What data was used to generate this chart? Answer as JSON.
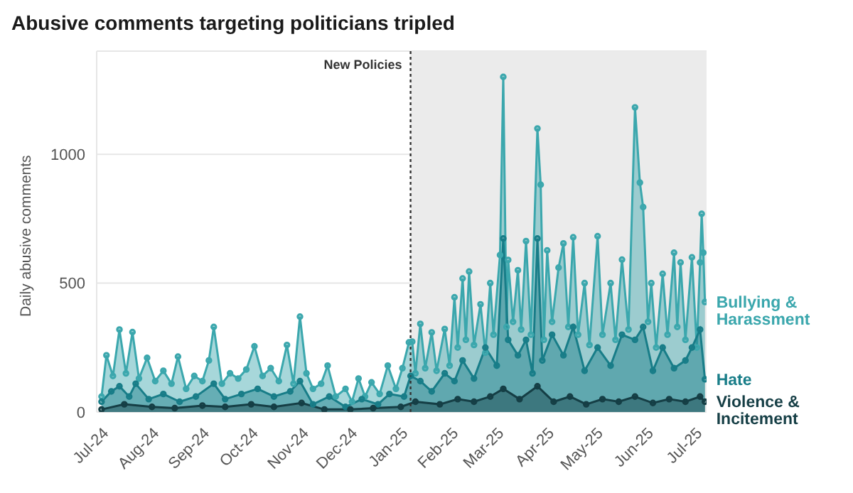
{
  "chart_data": {
    "type": "area",
    "title": "Abusive comments targeting politicians tripled",
    "ylabel": "Daily abusive comments",
    "xlim": [
      "2024-06-28",
      "2025-07-08"
    ],
    "xticks": [
      {
        "value": "2024-07-01",
        "label": "Jul-24"
      },
      {
        "value": "2024-08-01",
        "label": "Aug-24"
      },
      {
        "value": "2024-09-01",
        "label": "Sep-24"
      },
      {
        "value": "2024-10-01",
        "label": "Oct-24"
      },
      {
        "value": "2024-11-01",
        "label": "Nov-24"
      },
      {
        "value": "2024-12-01",
        "label": "Dec-24"
      },
      {
        "value": "2025-01-01",
        "label": "Jan-25"
      },
      {
        "value": "2025-02-01",
        "label": "Feb-25"
      },
      {
        "value": "2025-03-01",
        "label": "Mar-25"
      },
      {
        "value": "2025-04-01",
        "label": "Apr-25"
      },
      {
        "value": "2025-05-01",
        "label": "May-25"
      },
      {
        "value": "2025-06-01",
        "label": "Jun-25"
      },
      {
        "value": "2025-07-01",
        "label": "Jul-25"
      }
    ],
    "ylim": [
      0,
      1400
    ],
    "yticks": [
      0,
      500,
      1000
    ],
    "grid": "y",
    "marker": "circle",
    "ref_lines": [
      {
        "axis": "x",
        "value": "2025-01-07",
        "label": "New Policies",
        "color": "#333333",
        "line_style": "dotted"
      }
    ],
    "bands": [
      {
        "axis": "x",
        "from": "2025-01-07",
        "to": "2025-07-08",
        "color": "#ebebeb"
      }
    ],
    "series": [
      {
        "name": "Bullying & Harassment",
        "color": "#3ba7ad",
        "x": [
          "2024-07-01",
          "2024-07-04",
          "2024-07-08",
          "2024-07-12",
          "2024-07-16",
          "2024-07-20",
          "2024-07-24",
          "2024-07-29",
          "2024-08-03",
          "2024-08-08",
          "2024-08-13",
          "2024-08-17",
          "2024-08-22",
          "2024-08-27",
          "2024-09-01",
          "2024-09-05",
          "2024-09-08",
          "2024-09-13",
          "2024-09-18",
          "2024-09-23",
          "2024-09-28",
          "2024-10-03",
          "2024-10-08",
          "2024-10-13",
          "2024-10-18",
          "2024-10-23",
          "2024-10-27",
          "2024-10-31",
          "2024-11-04",
          "2024-11-08",
          "2024-11-13",
          "2024-11-17",
          "2024-11-22",
          "2024-11-28",
          "2024-12-02",
          "2024-12-06",
          "2024-12-10",
          "2024-12-14",
          "2024-12-19",
          "2024-12-24",
          "2024-12-29",
          "2025-01-02",
          "2025-01-06",
          "2025-01-08",
          "2025-01-10",
          "2025-01-13",
          "2025-01-16",
          "2025-01-20",
          "2025-01-23",
          "2025-01-28",
          "2025-01-31",
          "2025-02-03",
          "2025-02-05",
          "2025-02-08",
          "2025-02-10",
          "2025-02-12",
          "2025-02-15",
          "2025-02-19",
          "2025-02-22",
          "2025-02-25",
          "2025-02-27",
          "2025-03-03",
          "2025-03-05",
          "2025-03-07",
          "2025-03-08",
          "2025-03-11",
          "2025-03-14",
          "2025-03-16",
          "2025-03-19",
          "2025-03-22",
          "2025-03-26",
          "2025-03-28",
          "2025-03-30",
          "2025-04-01",
          "2025-04-04",
          "2025-04-08",
          "2025-04-11",
          "2025-04-14",
          "2025-04-17",
          "2025-04-20",
          "2025-04-24",
          "2025-04-27",
          "2025-05-02",
          "2025-05-05",
          "2025-05-10",
          "2025-05-13",
          "2025-05-17",
          "2025-05-21",
          "2025-05-25",
          "2025-05-28",
          "2025-05-30",
          "2025-06-02",
          "2025-06-04",
          "2025-06-07",
          "2025-06-11",
          "2025-06-14",
          "2025-06-18",
          "2025-06-20",
          "2025-06-22",
          "2025-06-25",
          "2025-06-29",
          "2025-07-02",
          "2025-07-04",
          "2025-07-05",
          "2025-07-06",
          "2025-07-07"
        ],
        "values": [
          60,
          220,
          140,
          320,
          150,
          310,
          130,
          210,
          120,
          160,
          110,
          215,
          90,
          140,
          120,
          200,
          330,
          110,
          150,
          130,
          165,
          255,
          140,
          170,
          120,
          260,
          110,
          370,
          150,
          90,
          110,
          180,
          60,
          90,
          40,
          130,
          60,
          115,
          70,
          180,
          90,
          170,
          270,
          273,
          150,
          342,
          170,
          309,
          160,
          322,
          180,
          445,
          250,
          518,
          280,
          545,
          260,
          418,
          230,
          500,
          300,
          609,
          1300,
          330,
          590,
          350,
          550,
          320,
          663,
          300,
          1100,
          882,
          280,
          627,
          350,
          560,
          654,
          330,
          678,
          300,
          500,
          260,
          682,
          300,
          500,
          280,
          591,
          320,
          1182,
          890,
          795,
          350,
          500,
          250,
          536,
          300,
          618,
          330,
          580,
          280,
          600,
          250,
          580,
          769,
          618,
          427
        ]
      },
      {
        "name": "Hate",
        "color": "#187d88",
        "x": [
          "2024-07-01",
          "2024-07-07",
          "2024-07-12",
          "2024-07-18",
          "2024-07-22",
          "2024-07-30",
          "2024-08-08",
          "2024-08-18",
          "2024-08-28",
          "2024-09-08",
          "2024-09-15",
          "2024-09-25",
          "2024-10-05",
          "2024-10-15",
          "2024-10-25",
          "2024-10-31",
          "2024-11-08",
          "2024-11-18",
          "2024-11-28",
          "2024-12-08",
          "2024-12-18",
          "2024-12-25",
          "2025-01-03",
          "2025-01-07",
          "2025-01-13",
          "2025-01-20",
          "2025-01-28",
          "2025-02-03",
          "2025-02-08",
          "2025-02-15",
          "2025-02-22",
          "2025-03-01",
          "2025-03-05",
          "2025-03-08",
          "2025-03-14",
          "2025-03-19",
          "2025-03-23",
          "2025-03-26",
          "2025-03-29",
          "2025-04-04",
          "2025-04-11",
          "2025-04-17",
          "2025-04-24",
          "2025-05-02",
          "2025-05-10",
          "2025-05-17",
          "2025-05-25",
          "2025-05-30",
          "2025-06-05",
          "2025-06-11",
          "2025-06-18",
          "2025-06-25",
          "2025-06-29",
          "2025-07-04",
          "2025-07-07"
        ],
        "values": [
          40,
          80,
          100,
          60,
          110,
          50,
          70,
          40,
          60,
          110,
          50,
          70,
          90,
          60,
          80,
          120,
          30,
          60,
          20,
          50,
          30,
          70,
          60,
          140,
          120,
          80,
          150,
          120,
          200,
          130,
          250,
          180,
          673,
          280,
          220,
          280,
          150,
          673,
          200,
          300,
          220,
          330,
          160,
          250,
          180,
          300,
          280,
          330,
          160,
          250,
          170,
          200,
          250,
          320,
          127
        ]
      },
      {
        "name": "Violence & Incitement",
        "color": "#153e45",
        "x": [
          "2024-07-01",
          "2024-07-15",
          "2024-08-01",
          "2024-08-15",
          "2024-09-01",
          "2024-09-15",
          "2024-10-01",
          "2024-10-15",
          "2024-11-01",
          "2024-11-15",
          "2024-12-01",
          "2024-12-15",
          "2025-01-01",
          "2025-01-10",
          "2025-01-25",
          "2025-02-05",
          "2025-02-15",
          "2025-02-25",
          "2025-03-05",
          "2025-03-15",
          "2025-03-26",
          "2025-04-05",
          "2025-04-15",
          "2025-04-25",
          "2025-05-05",
          "2025-05-15",
          "2025-05-25",
          "2025-06-05",
          "2025-06-15",
          "2025-06-25",
          "2025-07-04",
          "2025-07-07"
        ],
        "values": [
          10,
          30,
          20,
          15,
          25,
          20,
          30,
          20,
          35,
          10,
          10,
          15,
          20,
          40,
          30,
          50,
          40,
          60,
          90,
          50,
          100,
          40,
          60,
          30,
          50,
          40,
          60,
          35,
          50,
          40,
          60,
          40
        ]
      }
    ]
  }
}
